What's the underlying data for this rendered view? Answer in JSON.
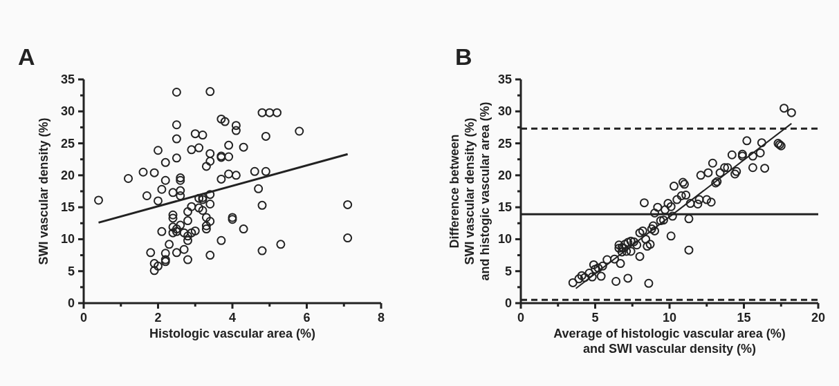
{
  "chart_data": [
    {
      "type": "scatter",
      "title": "A",
      "xlabel": "Histologic vascular area (%)",
      "ylabel": "SWI vascular density (%)",
      "xlim": [
        0,
        8
      ],
      "ylim": [
        0,
        35
      ],
      "xticks": [
        0,
        {
          "value": 1,
          "label": null
        },
        2,
        {
          "value": 3,
          "label": null
        },
        4,
        {
          "value": 5,
          "label": null
        },
        6,
        {
          "value": 7,
          "label": null
        },
        8
      ],
      "yticks": [
        0,
        {
          "value": 2.5,
          "label": null
        },
        5,
        {
          "value": 7.5,
          "label": null
        },
        10,
        {
          "value": 12.5,
          "label": null
        },
        15,
        {
          "value": 17.5,
          "label": null
        },
        20,
        {
          "value": 22.5,
          "label": null
        },
        25,
        {
          "value": 27.5,
          "label": null
        },
        30,
        {
          "value": 32.5,
          "label": null
        },
        35
      ],
      "marker": "circle",
      "grid": false,
      "series": [
        {
          "type": "scatter",
          "color": "#222222",
          "x": [
            0.4,
            1.2,
            1.6,
            1.7,
            1.8,
            1.9,
            1.9,
            1.9,
            2.0,
            2.0,
            2.0,
            2.1,
            2.1,
            2.2,
            2.2,
            2.2,
            2.2,
            2.2,
            2.3,
            2.4,
            2.4,
            2.4,
            2.4,
            2.4,
            2.5,
            2.5,
            2.5,
            2.5,
            2.5,
            2.5,
            2.5,
            2.6,
            2.6,
            2.6,
            2.6,
            2.6,
            2.7,
            2.7,
            2.8,
            2.8,
            2.8,
            2.8,
            2.8,
            2.9,
            2.9,
            2.9,
            3.0,
            3.0,
            3.1,
            3.1,
            3.1,
            3.2,
            3.2,
            3.2,
            3.2,
            3.3,
            3.3,
            3.3,
            3.3,
            3.4,
            3.4,
            3.4,
            3.4,
            3.4,
            3.4,
            3.4,
            3.7,
            3.7,
            3.7,
            3.7,
            3.7,
            3.8,
            3.9,
            3.9,
            3.9,
            4.0,
            4.0,
            4.1,
            4.1,
            4.1,
            4.3,
            4.3,
            4.6,
            4.7,
            4.8,
            4.8,
            4.8,
            5.0,
            5.2,
            4.9,
            4.9,
            5.3,
            5.8,
            7.1,
            7.1
          ],
          "values": [
            16.1,
            19.5,
            20.5,
            16.8,
            7.9,
            20.4,
            6.2,
            5.1,
            23.9,
            16.0,
            5.8,
            11.2,
            17.8,
            19.2,
            22.0,
            7.8,
            6.8,
            6.5,
            9.2,
            17.3,
            13.8,
            13.3,
            11.9,
            11.0,
            33.0,
            27.9,
            25.7,
            22.7,
            11.6,
            11.2,
            7.9,
            19.6,
            19.2,
            17.6,
            16.8,
            12.2,
            8.4,
            11.0,
            14.3,
            12.9,
            10.5,
            9.8,
            6.8,
            24.0,
            15.1,
            11.0,
            26.5,
            11.3,
            24.3,
            16.4,
            14.9,
            26.3,
            16.2,
            16.5,
            14.5,
            21.4,
            12.1,
            11.6,
            13.4,
            33.1,
            23.4,
            22.2,
            17.0,
            15.5,
            12.8,
            7.5,
            28.8,
            23.0,
            22.8,
            19.4,
            9.8,
            28.4,
            24.7,
            22.9,
            20.2,
            13.4,
            13.1,
            27.8,
            27.0,
            20.0,
            24.4,
            11.6,
            20.6,
            17.9,
            15.3,
            8.2,
            29.8,
            29.8,
            29.8,
            26.1,
            20.6,
            9.2,
            26.9,
            15.4,
            10.2
          ]
        },
        {
          "type": "line",
          "color": "#222222",
          "marker": "none",
          "line_style": "solid",
          "x": [
            0.4,
            7.1
          ],
          "values": [
            12.6,
            23.3
          ]
        }
      ]
    },
    {
      "type": "scatter",
      "title": "B",
      "xlabel": "Average of histologic vascular area (%)\nand SWI vascular density (%)",
      "ylabel": "Difference between\nSWI vascular density (%)\nand histogic vascular area (%)",
      "xlim": [
        0,
        20
      ],
      "ylim": [
        0,
        35
      ],
      "xticks": [
        0,
        {
          "value": 2.5,
          "label": null
        },
        5,
        {
          "value": 7.5,
          "label": null
        },
        10,
        {
          "value": 12.5,
          "label": null
        },
        15,
        {
          "value": 17.5,
          "label": null
        },
        20
      ],
      "yticks": [
        0,
        {
          "value": 2.5,
          "label": null
        },
        5,
        {
          "value": 7.5,
          "label": null
        },
        10,
        {
          "value": 12.5,
          "label": null
        },
        15,
        {
          "value": 17.5,
          "label": null
        },
        20,
        {
          "value": 22.5,
          "label": null
        },
        25,
        {
          "value": 27.5,
          "label": null
        },
        30,
        {
          "value": 32.5,
          "label": null
        },
        35
      ],
      "marker": "circle",
      "grid": false,
      "ref_lines": [
        {
          "axis": "y",
          "value": 13.9,
          "line_style": "solid",
          "color": "#222222"
        },
        {
          "axis": "y",
          "value": 27.3,
          "line_style": "dashed",
          "color": "#222222"
        },
        {
          "axis": "y",
          "value": 0.5,
          "line_style": "dashed",
          "color": "#222222"
        }
      ],
      "series": [
        {
          "type": "scatter",
          "color": "#222222",
          "x": [
            3.5,
            3.9,
            4.1,
            4.3,
            4.6,
            4.8,
            4.9,
            5.0,
            5.2,
            5.4,
            5.5,
            5.8,
            6.3,
            6.4,
            6.6,
            6.6,
            6.7,
            6.8,
            6.8,
            6.9,
            7.0,
            7.1,
            7.2,
            7.2,
            7.4,
            7.4,
            7.6,
            7.8,
            8.0,
            8.0,
            8.2,
            8.3,
            8.4,
            8.5,
            8.6,
            8.7,
            8.8,
            8.9,
            9.0,
            9.0,
            9.2,
            9.4,
            9.6,
            9.7,
            9.9,
            10.1,
            10.1,
            10.2,
            10.3,
            10.5,
            10.8,
            10.9,
            11.0,
            11.1,
            11.3,
            11.3,
            11.4,
            11.9,
            12.1,
            12.0,
            12.5,
            12.6,
            12.8,
            12.9,
            13.1,
            13.2,
            13.4,
            13.7,
            13.9,
            14.2,
            14.4,
            14.5,
            14.9,
            14.9,
            15.2,
            15.6,
            15.6,
            16.1,
            16.2,
            16.4,
            17.3,
            17.4,
            17.5,
            17.7,
            18.2
          ],
          "values": [
            3.2,
            3.8,
            4.3,
            4.0,
            4.7,
            4.1,
            6.0,
            5.3,
            5.5,
            4.2,
            5.8,
            6.8,
            6.9,
            3.4,
            9.1,
            8.6,
            6.2,
            8.0,
            8.7,
            8.6,
            9.2,
            8.1,
            3.9,
            9.5,
            8.1,
            9.7,
            9.6,
            9.1,
            11.0,
            7.3,
            11.3,
            15.7,
            10.0,
            8.9,
            3.1,
            9.2,
            11.6,
            12.1,
            11.3,
            14.1,
            15.0,
            12.9,
            13.0,
            14.6,
            15.6,
            10.5,
            15.1,
            13.6,
            18.3,
            16.2,
            16.8,
            18.9,
            18.6,
            16.9,
            13.2,
            8.3,
            15.6,
            15.5,
            20.0,
            16.2,
            16.2,
            20.4,
            15.8,
            21.9,
            18.8,
            19.0,
            20.4,
            21.2,
            21.2,
            23.2,
            20.2,
            20.6,
            23.3,
            23.0,
            25.4,
            21.2,
            23.0,
            23.5,
            25.1,
            21.1,
            25.0,
            24.8,
            24.6,
            30.5,
            29.8
          ]
        },
        {
          "type": "line",
          "color": "#222222",
          "marker": "none",
          "line_style": "solid",
          "x": [
            3.7,
            18.2
          ],
          "values": [
            2.3,
            28.1
          ]
        }
      ]
    }
  ]
}
